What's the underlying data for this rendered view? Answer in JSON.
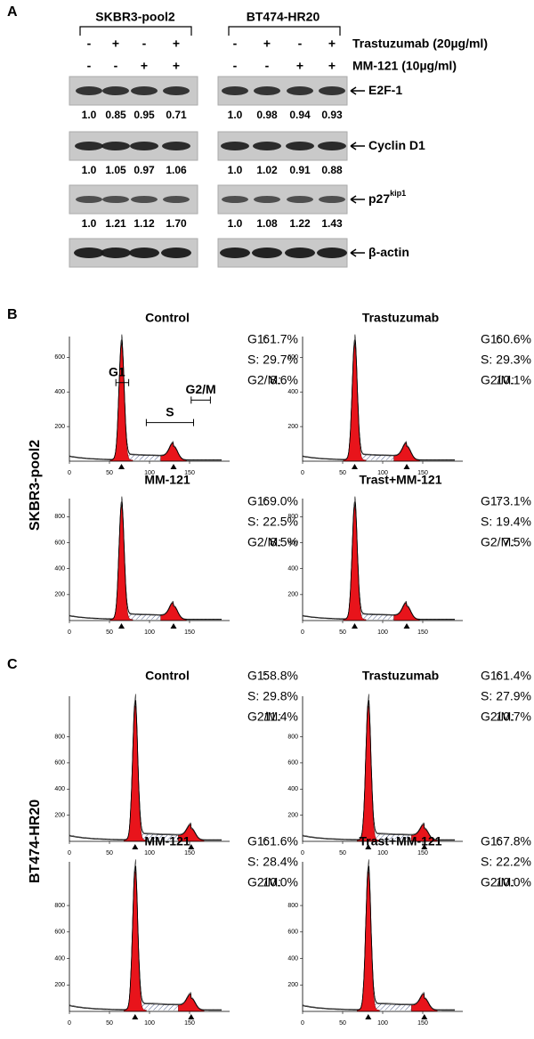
{
  "panel_a": {
    "label": "A",
    "cell_lines": [
      "SKBR3-pool2",
      "BT474-HR20"
    ],
    "treatments": [
      {
        "name": "Trastuzumab (20µg/ml)",
        "signs": [
          "-",
          "+",
          "-",
          "+"
        ]
      },
      {
        "name": "MM-121 (10µg/ml)",
        "signs": [
          "-",
          "-",
          "+",
          "+"
        ]
      }
    ],
    "blots": [
      {
        "name": "E2F-1",
        "values": [
          [
            "1.0",
            "0.85",
            "0.95",
            "0.71"
          ],
          [
            "1.0",
            "0.98",
            "0.94",
            "0.93"
          ]
        ]
      },
      {
        "name": "Cyclin D1",
        "values": [
          [
            "1.0",
            "1.05",
            "0.97",
            "1.06"
          ],
          [
            "1.0",
            "1.02",
            "0.91",
            "0.88"
          ]
        ]
      },
      {
        "name": "p27",
        "superscript": "kip1",
        "values": [
          [
            "1.0",
            "1.21",
            "1.12",
            "1.70"
          ],
          [
            "1.0",
            "1.08",
            "1.22",
            "1.43"
          ]
        ]
      },
      {
        "name": "β-actin"
      }
    ]
  },
  "panel_b": {
    "label": "B",
    "row_label": "SKBR3-pool2",
    "xlim": [
      0,
      200
    ],
    "xticks": [
      0,
      50,
      100,
      150
    ],
    "plots": [
      {
        "title": "Control",
        "ylim": [
          0,
          720
        ],
        "yticks": [
          200,
          400,
          600
        ],
        "stats": [
          [
            "G1:",
            "61.7%"
          ],
          [
            "S:",
            "29.7%"
          ],
          [
            "G2/M:",
            "8.6%"
          ]
        ],
        "gates": [
          "G1",
          "S",
          "G2/M"
        ]
      },
      {
        "title": "Trastuzumab",
        "ylim": [
          0,
          720
        ],
        "yticks": [
          200,
          400,
          600
        ],
        "stats": [
          [
            "G1:",
            "60.6%"
          ],
          [
            "S:",
            "29.3%"
          ],
          [
            "G2/M:",
            "10.1%"
          ]
        ]
      },
      {
        "title": "MM-121",
        "ylim": [
          0,
          940
        ],
        "yticks": [
          200,
          400,
          600,
          800
        ],
        "stats": [
          [
            "G1:",
            "69.0%"
          ],
          [
            "S:",
            "22.5%"
          ],
          [
            "G2/M:",
            "8.5%"
          ]
        ]
      },
      {
        "title": "Trast+MM-121",
        "ylim": [
          0,
          940
        ],
        "yticks": [
          200,
          400,
          600,
          800
        ],
        "stats": [
          [
            "G1:",
            "73.1%"
          ],
          [
            "S:",
            "19.4%"
          ],
          [
            "G2/M:",
            "7.5%"
          ]
        ]
      }
    ]
  },
  "panel_c": {
    "label": "C",
    "row_label": "BT474-HR20",
    "xlim": [
      0,
      200
    ],
    "xticks": [
      0,
      50,
      100,
      150
    ],
    "plots": [
      {
        "title": "Control",
        "ylim": [
          0,
          1110
        ],
        "yticks": [
          200,
          400,
          600,
          800
        ],
        "stats": [
          [
            "G1:",
            "58.8%"
          ],
          [
            "S:",
            "29.8%"
          ],
          [
            "G2/M:",
            "11.4%"
          ]
        ]
      },
      {
        "title": "Trastuzumab",
        "ylim": [
          0,
          1110
        ],
        "yticks": [
          200,
          400,
          600,
          800
        ],
        "stats": [
          [
            "G1:",
            "61.4%"
          ],
          [
            "S:",
            "27.9%"
          ],
          [
            "G2/M:",
            "10.7%"
          ]
        ]
      },
      {
        "title": "MM-121",
        "ylim": [
          0,
          1130
        ],
        "yticks": [
          200,
          400,
          600,
          800
        ],
        "stats": [
          [
            "G1:",
            "61.6%"
          ],
          [
            "S:",
            "28.4%"
          ],
          [
            "G2/M:",
            "10.0%"
          ]
        ]
      },
      {
        "title": "Trast+MM-121",
        "ylim": [
          0,
          1130
        ],
        "yticks": [
          200,
          400,
          600,
          800
        ],
        "stats": [
          [
            "G1:",
            "67.8%"
          ],
          [
            "S:",
            "22.2%"
          ],
          [
            "G2/M:",
            "10.0%"
          ]
        ]
      }
    ]
  }
}
